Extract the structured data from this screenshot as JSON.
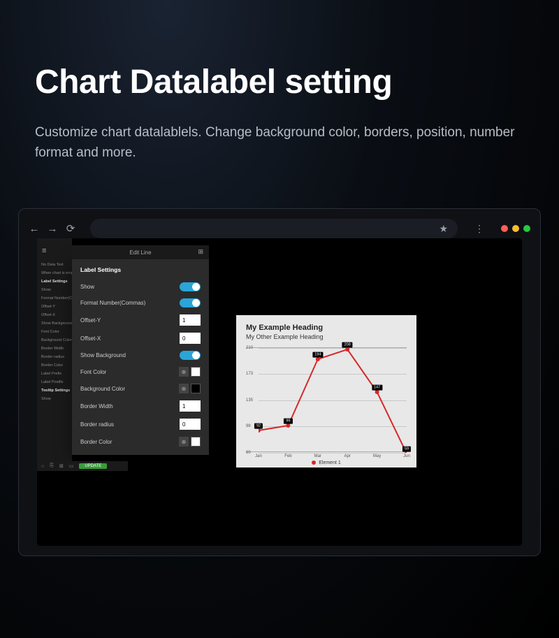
{
  "heading": "Chart Datalabel setting",
  "subtitle": "Customize chart datalablels. Change background color, borders, position, number format and more.",
  "browser": {
    "traffic_colors": [
      "#ff5f57",
      "#febc2e",
      "#28c840"
    ]
  },
  "sidebar": {
    "header": "Edit Line",
    "items": [
      "No Data Text",
      "When chart is emp",
      "Label Settings",
      "Show",
      "Format Number(C",
      "Offset-Y",
      "Offset-X",
      "Show Background",
      "Font Color",
      "Background Color",
      "Border Width",
      "Border radius",
      "Border Color",
      "Label Prefix",
      "Label Postfix",
      "Tooltip Settings",
      "Show"
    ],
    "bold_idx": [
      2,
      15
    ]
  },
  "panel": {
    "header": "Edit Line",
    "title": "Label Settings",
    "rows": [
      {
        "label": "Show",
        "type": "toggle",
        "on": true
      },
      {
        "label": "Format Number(Commas)",
        "type": "toggle",
        "on": true
      },
      {
        "label": "Offset-Y",
        "type": "number",
        "value": "1"
      },
      {
        "label": "Offset-X",
        "type": "number",
        "value": "0"
      },
      {
        "label": "Show Background",
        "type": "toggle",
        "on": true
      },
      {
        "label": "Font Color",
        "type": "color",
        "color": "#ffffff"
      },
      {
        "label": "Background Color",
        "type": "color",
        "color": "#000000"
      },
      {
        "label": "Border Width",
        "type": "number",
        "value": "1"
      },
      {
        "label": "Border radius",
        "type": "number",
        "value": "0"
      },
      {
        "label": "Border Color",
        "type": "color",
        "color": "#ffffff"
      }
    ]
  },
  "update_btn": "UPDATE",
  "chart": {
    "title": "My Example Heading",
    "subtitle": "My Other Example Heading",
    "x_labels": [
      "Jan",
      "Feb",
      "Mar",
      "Apr",
      "May",
      "Jun"
    ],
    "y_ticks": [
      60,
      98,
      135,
      173,
      210
    ],
    "values": [
      92,
      99,
      194,
      208,
      147,
      59
    ],
    "line_color": "#d62728",
    "marker_fill": "#d62728",
    "grid_color": "#c8c8c8",
    "bg": "#e8e8e8",
    "datalabel_bg": "#000000",
    "datalabel_fg": "#ffffff",
    "legend": "Element 1"
  }
}
